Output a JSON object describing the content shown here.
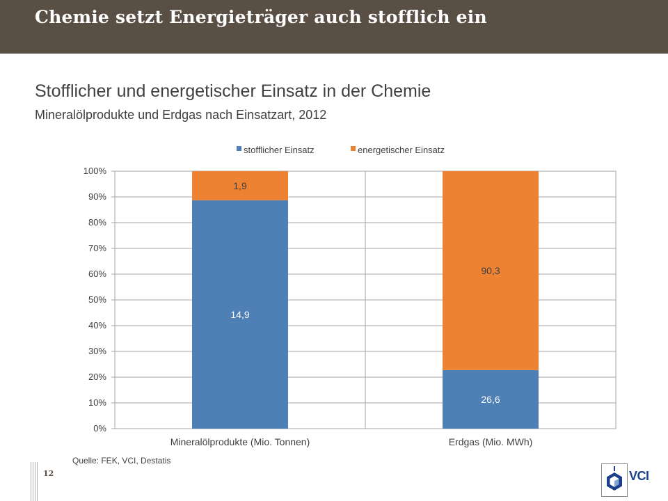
{
  "header": {
    "title": "Chemie setzt Energieträger auch stofflich ein"
  },
  "footer": {
    "source": "Quelle: FEK, VCI, Destatis",
    "page_number": "12",
    "logo_text": "VCI",
    "colors": {
      "header_bg": "#594f45",
      "logo_blue": "#1c3f8c"
    }
  },
  "chart_data": {
    "type": "bar",
    "stacked": true,
    "normalized": true,
    "title": "Stofflicher und energetischer Einsatz in der Chemie",
    "subtitle": "Mineralölprodukte und Erdgas nach Einsatzart, 2012",
    "categories": [
      "Mineralölprodukte (Mio. Tonnen)",
      "Erdgas (Mio. MWh)"
    ],
    "series": [
      {
        "name": "stofflicher Einsatz",
        "values": [
          14.9,
          26.6
        ],
        "labels": [
          "14,9",
          "26,6"
        ],
        "color": "#4e7fb5"
      },
      {
        "name": "energetischer Einsatz",
        "values": [
          1.9,
          90.3
        ],
        "labels": [
          "1,9",
          "90,3"
        ],
        "color": "#ee8233"
      }
    ],
    "yticks": [
      "0%",
      "10%",
      "20%",
      "30%",
      "40%",
      "50%",
      "60%",
      "70%",
      "80%",
      "90%",
      "100%"
    ],
    "ylim": [
      0,
      100
    ],
    "grid": true,
    "legend": "top-center"
  }
}
